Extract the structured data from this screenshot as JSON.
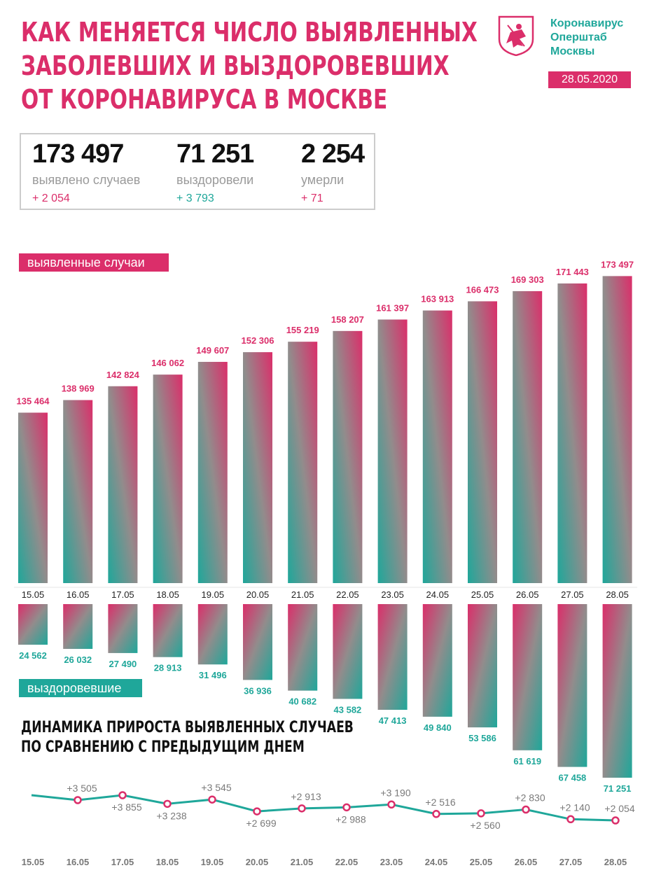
{
  "header": {
    "title_lines": [
      "КАК МЕНЯЕТСЯ ЧИСЛО ВЫЯВЛЕННЫХ",
      "ЗАБОЛЕВШИХ И ВЫЗДОРОВЕВШИХ",
      "ОТ КОРОНАВИРУСА В МОСКВЕ"
    ],
    "org_lines": [
      "Коронавирус",
      "Оперштаб",
      "Москвы"
    ],
    "date": "28.05.2020",
    "logo_icon": "moscow-coat-of-arms-icon"
  },
  "totals": [
    {
      "value": "173 497",
      "label": "выявлено случаев",
      "delta": "+ 2 054",
      "delta_color": "#db2e6a"
    },
    {
      "value": "71 251",
      "label": "выздоровели",
      "delta": "+ 3 793",
      "delta_color": "#1fa79a"
    },
    {
      "value": "2 254",
      "label": "умерли",
      "delta": "+ 71",
      "delta_color": "#db2e6a"
    }
  ],
  "colors": {
    "pink": "#db2e6a",
    "teal": "#1fa79a",
    "gray": "#928c8c"
  },
  "chart_data": [
    {
      "type": "bar",
      "series_label": "выявленные случаи",
      "categories": [
        "15.05",
        "16.05",
        "17.05",
        "18.05",
        "19.05",
        "20.05",
        "21.05",
        "22.05",
        "23.05",
        "24.05",
        "25.05",
        "26.05",
        "27.05",
        "28.05"
      ],
      "values": [
        135464,
        138969,
        142824,
        146062,
        149607,
        152306,
        155219,
        158207,
        161397,
        163913,
        166473,
        169303,
        171443,
        173497
      ],
      "value_labels": [
        "135 464",
        "138 969",
        "142 824",
        "146 062",
        "149 607",
        "152 306",
        "155 219",
        "158 207",
        "161 397",
        "163 913",
        "166 473",
        "169 303",
        "171 443",
        "173 497"
      ]
    },
    {
      "type": "bar",
      "series_label": "выздоровевшие",
      "categories": [
        "15.05",
        "16.05",
        "17.05",
        "18.05",
        "19.05",
        "20.05",
        "21.05",
        "22.05",
        "23.05",
        "24.05",
        "25.05",
        "26.05",
        "27.05",
        "28.05"
      ],
      "values": [
        24562,
        26032,
        27490,
        28913,
        31496,
        36936,
        40682,
        43582,
        47413,
        49840,
        53586,
        61619,
        67458,
        71251
      ],
      "value_labels": [
        "24 562",
        "26 032",
        "27 490",
        "28 913",
        "31 496",
        "36 936",
        "40 682",
        "43 582",
        "47 413",
        "49 840",
        "53 586",
        "61 619",
        "67 458",
        "71 251"
      ]
    },
    {
      "type": "line",
      "title_lines": [
        "ДИНАМИКА ПРИРОСТА ВЫЯВЛЕННЫХ СЛУЧАЕВ",
        "ПО СРАВНЕНИЮ С ПРЕДЫДУЩИМ ДНЕМ"
      ],
      "categories": [
        "15.05",
        "16.05",
        "17.05",
        "18.05",
        "19.05",
        "20.05",
        "21.05",
        "22.05",
        "23.05",
        "24.05",
        "25.05",
        "26.05",
        "27.05",
        "28.05"
      ],
      "values": [
        null,
        3505,
        3855,
        3238,
        3545,
        2699,
        2913,
        2988,
        3190,
        2516,
        2560,
        2830,
        2140,
        2054
      ],
      "value_labels": [
        "",
        "+3 505",
        "+3 855",
        "+3 238",
        "+3 545",
        "+2 699",
        "+2 913",
        "+2 988",
        "+3 190",
        "+2 516",
        "+2 560",
        "+2 830",
        "+2 140",
        "+2 054"
      ]
    }
  ]
}
